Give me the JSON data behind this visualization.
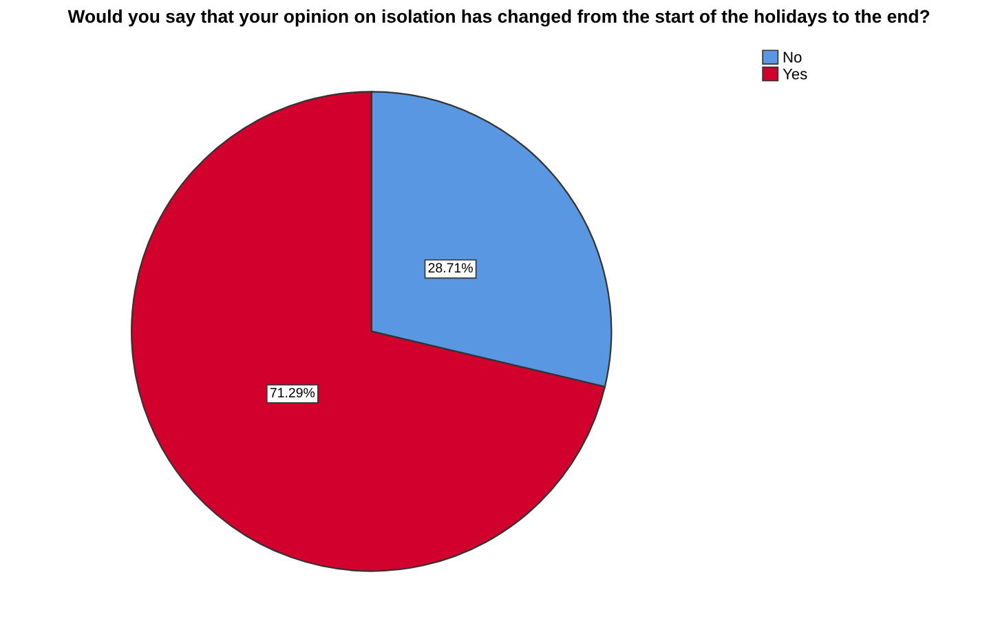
{
  "chart_data": {
    "type": "pie",
    "title": "Would you say that your opinion on isolation has changed from the start of the holidays to the end?",
    "categories": [
      "No",
      "Yes"
    ],
    "values": [
      28.71,
      71.29
    ],
    "colors": [
      "#5a97e2",
      "#d2002c"
    ],
    "value_labels": [
      "28.71%",
      "71.29%"
    ],
    "legend": "top right"
  }
}
